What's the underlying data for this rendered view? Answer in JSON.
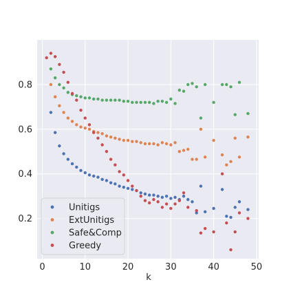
{
  "chart_data": {
    "type": "scatter",
    "title": "",
    "xlabel": "k",
    "ylabel": "",
    "xlim": [
      -1.2,
      50.5
    ],
    "ylim": [
      0.02,
      1.0
    ],
    "xticks": [
      0,
      10,
      20,
      30,
      40,
      50
    ],
    "yticks": [
      0.2,
      0.4,
      0.6,
      0.8
    ],
    "grid": true,
    "background": "#eaeaf2",
    "legend_position": "lower-left",
    "series": [
      {
        "name": "Unitigs",
        "color": "#4c72b0",
        "x": [
          2,
          3,
          4,
          5,
          6,
          7,
          8,
          9,
          10,
          11,
          12,
          13,
          14,
          15,
          16,
          17,
          18,
          19,
          20,
          21,
          22,
          23,
          24,
          25,
          26,
          27,
          28,
          29,
          30,
          31,
          32,
          33,
          34,
          35,
          36,
          37,
          38,
          40,
          42,
          43,
          44,
          45,
          46,
          48
        ],
        "y": [
          0.675,
          0.585,
          0.525,
          0.49,
          0.465,
          0.445,
          0.43,
          0.415,
          0.405,
          0.395,
          0.39,
          0.385,
          0.375,
          0.37,
          0.36,
          0.355,
          0.345,
          0.34,
          0.335,
          0.33,
          0.325,
          0.315,
          0.31,
          0.305,
          0.305,
          0.3,
          0.295,
          0.3,
          0.29,
          0.295,
          0.285,
          0.3,
          0.285,
          0.275,
          0.225,
          0.345,
          0.23,
          0.245,
          0.33,
          0.21,
          0.205,
          0.25,
          0.275,
          0.24
        ]
      },
      {
        "name": "ExtUnitigs",
        "color": "#dd8452",
        "x": [
          2,
          3,
          4,
          5,
          6,
          7,
          8,
          9,
          10,
          11,
          12,
          13,
          14,
          15,
          16,
          17,
          18,
          19,
          20,
          21,
          22,
          23,
          24,
          25,
          26,
          27,
          28,
          29,
          30,
          31,
          32,
          33,
          34,
          35,
          36,
          37,
          38,
          40,
          42,
          43,
          44,
          45,
          46,
          48
        ],
        "y": [
          0.8,
          0.745,
          0.705,
          0.675,
          0.65,
          0.635,
          0.62,
          0.61,
          0.605,
          0.6,
          0.59,
          0.585,
          0.58,
          0.57,
          0.565,
          0.56,
          0.555,
          0.55,
          0.55,
          0.545,
          0.545,
          0.54,
          0.535,
          0.535,
          0.535,
          0.53,
          0.54,
          0.535,
          0.53,
          0.54,
          0.5,
          0.505,
          0.51,
          0.465,
          0.465,
          0.6,
          0.475,
          0.55,
          0.485,
          0.44,
          0.455,
          0.56,
          0.475,
          0.565
        ]
      },
      {
        "name": "Safe&Comp",
        "color": "#55a868",
        "x": [
          2,
          3,
          4,
          5,
          6,
          7,
          8,
          9,
          10,
          11,
          12,
          13,
          14,
          15,
          16,
          17,
          18,
          19,
          20,
          21,
          22,
          23,
          24,
          25,
          26,
          27,
          28,
          29,
          30,
          31,
          32,
          33,
          34,
          35,
          36,
          37,
          38,
          40,
          42,
          43,
          44,
          45,
          46,
          48
        ],
        "y": [
          0.87,
          0.83,
          0.8,
          0.785,
          0.765,
          0.755,
          0.75,
          0.745,
          0.74,
          0.74,
          0.735,
          0.735,
          0.73,
          0.73,
          0.73,
          0.73,
          0.73,
          0.725,
          0.725,
          0.72,
          0.72,
          0.72,
          0.72,
          0.72,
          0.715,
          0.725,
          0.725,
          0.72,
          0.735,
          0.715,
          0.775,
          0.77,
          0.8,
          0.805,
          0.79,
          0.65,
          0.8,
          0.72,
          0.8,
          0.8,
          0.79,
          0.665,
          0.81,
          0.67
        ]
      },
      {
        "name": "Greedy",
        "color": "#c44e52",
        "x": [
          1,
          2,
          3,
          4,
          5,
          6,
          7,
          8,
          9,
          10,
          11,
          12,
          13,
          14,
          15,
          16,
          17,
          18,
          19,
          20,
          21,
          22,
          23,
          24,
          25,
          26,
          27,
          28,
          29,
          30,
          31,
          32,
          33,
          34,
          36,
          37,
          38,
          40,
          42,
          43,
          44,
          45,
          46,
          48
        ],
        "y": [
          0.92,
          0.94,
          0.925,
          0.89,
          0.855,
          0.81,
          0.76,
          0.73,
          0.685,
          0.65,
          0.62,
          0.585,
          0.56,
          0.53,
          0.5,
          0.465,
          0.44,
          0.41,
          0.395,
          0.37,
          0.345,
          0.325,
          0.3,
          0.28,
          0.27,
          0.285,
          0.275,
          0.25,
          0.265,
          0.245,
          0.265,
          0.28,
          0.315,
          0.25,
          0.235,
          0.135,
          0.155,
          0.14,
          0.4,
          0.18,
          0.06,
          0.14,
          0.225,
          0.2
        ]
      }
    ]
  }
}
